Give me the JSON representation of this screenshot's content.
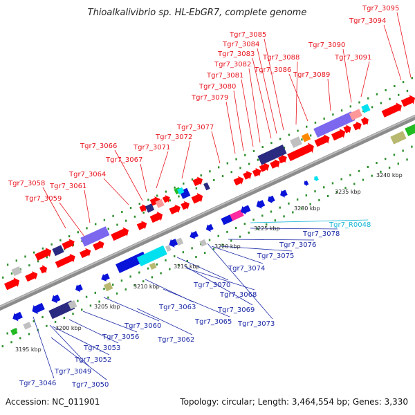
{
  "title": "Thioalkalivibrio sp. HL-EbGR7, complete genome",
  "footer": {
    "accession": "Accession: NC_011901",
    "topology": "Topology: circular; Length: 3,464,554 bp; Genes: 3,330"
  },
  "colors": {
    "forward_label": "#e8141e",
    "reverse_label": "#1c2aa6",
    "rna_label": "#1ab7d8",
    "backbone": "#8c8c8c",
    "scale_dots": "#2f8f2f"
  },
  "scale_ticks": [
    "3195 kbp",
    "3200 kbp",
    "3205 kbp",
    "3210 kbp",
    "3215 kbp",
    "3220 kbp",
    "3225 kbp",
    "3230 kbp",
    "3235 kbp",
    "3240 kbp"
  ],
  "forward_labels": [
    "Tgr7_3058",
    "Tgr7_3059",
    "Tgr7_3061",
    "Tgr7_3064",
    "Tgr7_3066",
    "Tgr7_3067",
    "Tgr7_3071",
    "Tgr7_3072",
    "Tgr7_3077",
    "Tgr7_3079",
    "Tgr7_3080",
    "Tgr7_3081",
    "Tgr7_3082",
    "Tgr7_3083",
    "Tgr7_3084",
    "Tgr7_3085",
    "Tgr7_3086",
    "Tgr7_3088",
    "Tgr7_3089",
    "Tgr7_3090",
    "Tgr7_3091",
    "Tgr7_3094",
    "Tgr7_3095"
  ],
  "reverse_labels": [
    "Tgr7_3046",
    "Tgr7_3049",
    "Tgr7_3050",
    "Tgr7_3052",
    "Tgr7_3053",
    "Tgr7_3056",
    "Tgr7_3060",
    "Tgr7_3062",
    "Tgr7_3063",
    "Tgr7_3065",
    "Tgr7_3068",
    "Tgr7_3069",
    "Tgr7_3070",
    "Tgr7_3073",
    "Tgr7_3074",
    "Tgr7_3075",
    "Tgr7_3076",
    "Tgr7_3078"
  ],
  "rna_labels": [
    "Tgr7_R0048"
  ]
}
